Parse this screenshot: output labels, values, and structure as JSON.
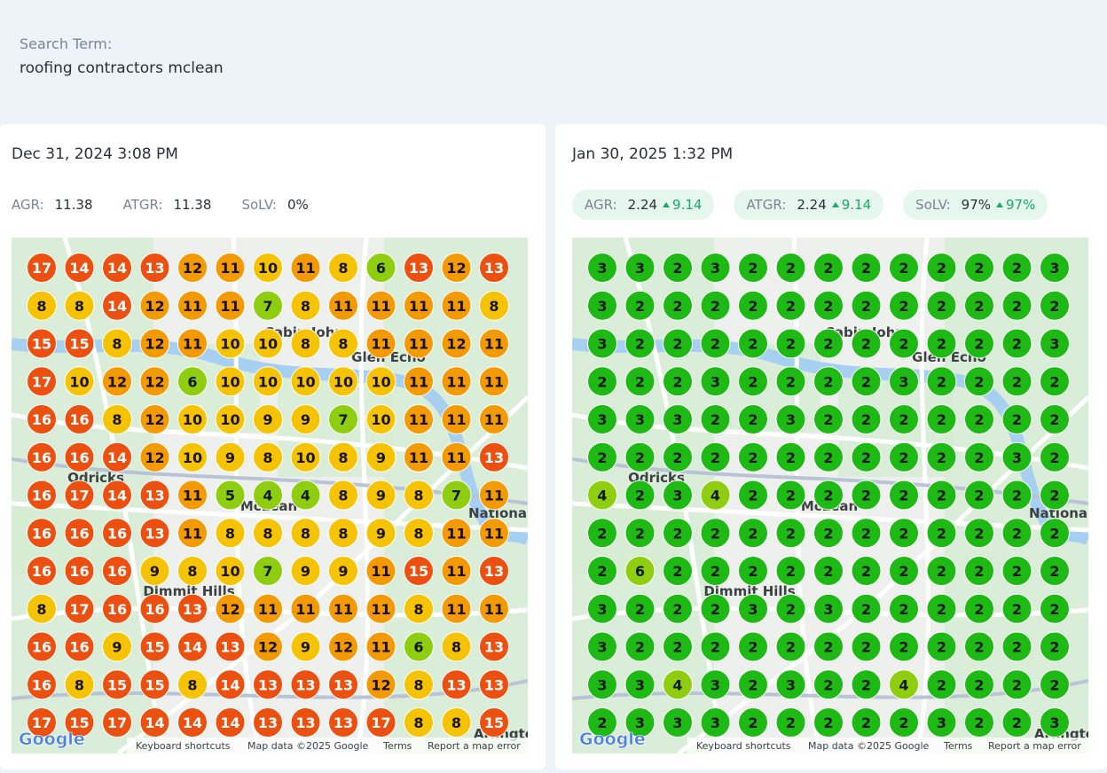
{
  "search": {
    "label": "Search Term:",
    "term": "roofing contractors mclean"
  },
  "panels": [
    {
      "date": "Dec 31, 2024 3:08 PM",
      "metrics": [
        {
          "label": "AGR:",
          "value": "11.38"
        },
        {
          "label": "ATGR:",
          "value": "11.38"
        },
        {
          "label": "SoLV:",
          "value": "0%"
        }
      ],
      "grid": [
        [
          17,
          14,
          14,
          13,
          12,
          11,
          10,
          11,
          8,
          6,
          13,
          12,
          13
        ],
        [
          8,
          8,
          14,
          12,
          11,
          11,
          7,
          8,
          11,
          11,
          11,
          11,
          8
        ],
        [
          15,
          15,
          8,
          12,
          11,
          10,
          10,
          8,
          8,
          11,
          11,
          12,
          11
        ],
        [
          17,
          10,
          12,
          12,
          6,
          10,
          10,
          10,
          10,
          10,
          11,
          11,
          11
        ],
        [
          16,
          16,
          8,
          12,
          10,
          10,
          9,
          9,
          7,
          10,
          11,
          11,
          11
        ],
        [
          16,
          16,
          14,
          12,
          10,
          9,
          8,
          10,
          8,
          9,
          11,
          11,
          13
        ],
        [
          16,
          17,
          14,
          13,
          11,
          5,
          4,
          4,
          8,
          9,
          8,
          7,
          11
        ],
        [
          16,
          16,
          16,
          13,
          11,
          8,
          8,
          8,
          8,
          9,
          8,
          11,
          11
        ],
        [
          16,
          16,
          16,
          9,
          8,
          10,
          7,
          9,
          9,
          11,
          15,
          11,
          13
        ],
        [
          8,
          17,
          16,
          16,
          13,
          12,
          11,
          11,
          11,
          11,
          8,
          11,
          11
        ],
        [
          16,
          16,
          9,
          15,
          14,
          13,
          12,
          9,
          12,
          11,
          6,
          8,
          13
        ],
        [
          16,
          8,
          15,
          15,
          8,
          14,
          13,
          13,
          13,
          12,
          8,
          13,
          13
        ],
        [
          17,
          15,
          17,
          14,
          14,
          14,
          13,
          13,
          13,
          17,
          8,
          8,
          15
        ]
      ]
    },
    {
      "date": "Jan 30, 2025 1:32 PM",
      "metrics": [
        {
          "label": "AGR:",
          "value": "2.24",
          "change": "9.14"
        },
        {
          "label": "ATGR:",
          "value": "2.24",
          "change": "9.14"
        },
        {
          "label": "SoLV:",
          "value": "97%",
          "change": "97%"
        }
      ],
      "grid": [
        [
          3,
          3,
          2,
          3,
          2,
          2,
          2,
          2,
          2,
          2,
          2,
          2,
          3
        ],
        [
          3,
          2,
          2,
          2,
          2,
          2,
          2,
          2,
          2,
          2,
          2,
          2,
          2
        ],
        [
          3,
          2,
          2,
          2,
          2,
          2,
          2,
          2,
          2,
          2,
          2,
          2,
          3
        ],
        [
          2,
          2,
          2,
          3,
          2,
          2,
          2,
          2,
          3,
          2,
          2,
          2,
          2
        ],
        [
          3,
          3,
          3,
          2,
          2,
          3,
          2,
          2,
          2,
          2,
          2,
          2,
          2
        ],
        [
          2,
          2,
          2,
          2,
          2,
          2,
          2,
          2,
          2,
          2,
          2,
          3,
          2
        ],
        [
          4,
          2,
          3,
          4,
          2,
          2,
          2,
          2,
          2,
          2,
          2,
          2,
          2
        ],
        [
          2,
          2,
          2,
          2,
          2,
          2,
          2,
          2,
          2,
          2,
          2,
          2,
          2
        ],
        [
          2,
          6,
          2,
          2,
          2,
          2,
          2,
          2,
          2,
          2,
          2,
          2,
          2
        ],
        [
          3,
          2,
          2,
          2,
          3,
          2,
          3,
          2,
          2,
          2,
          2,
          2,
          2
        ],
        [
          3,
          2,
          2,
          2,
          2,
          2,
          2,
          2,
          2,
          2,
          2,
          2,
          2
        ],
        [
          3,
          3,
          4,
          3,
          2,
          3,
          2,
          2,
          4,
          2,
          2,
          2,
          2
        ],
        [
          2,
          3,
          3,
          3,
          2,
          2,
          2,
          2,
          2,
          3,
          2,
          2,
          3
        ]
      ]
    }
  ],
  "map": {
    "labels": [
      "Cabin John",
      "Glen Echo",
      "Odricks",
      "McLean",
      "Dimmit Hills",
      "Nationa",
      "Arlingto"
    ],
    "footer": [
      "Keyboard shortcuts",
      "Map data ©2025 Google",
      "Terms",
      "Report a map error"
    ],
    "logo": "Google"
  }
}
